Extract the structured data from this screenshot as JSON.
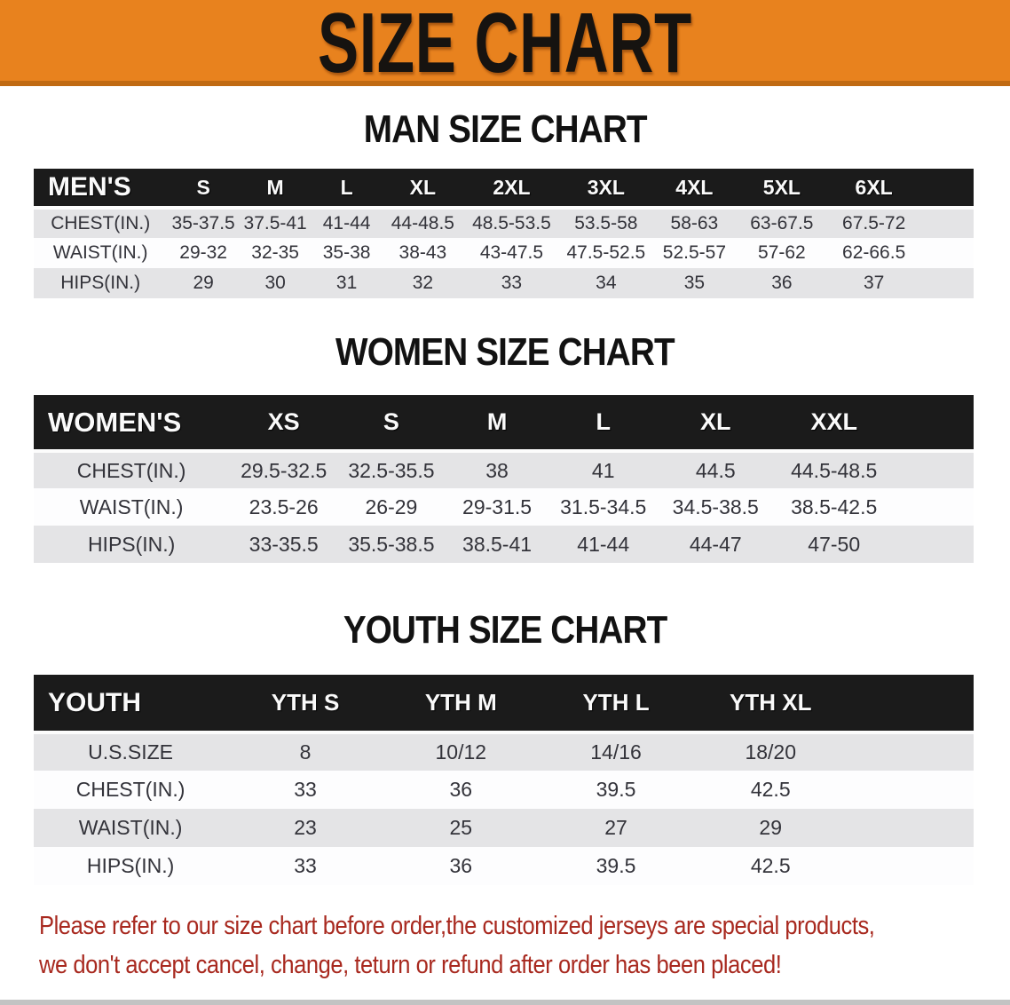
{
  "banner": {
    "title": "SIZE CHART"
  },
  "colors": {
    "banner_bg": "#E8821E",
    "banner_edge": "#C06A12",
    "table_header_bg": "#1B1B1B",
    "row_gray": "#E4E4E6",
    "row_white": "#FDFDFE",
    "footer_red": "#A8291F"
  },
  "sections": [
    {
      "heading": "MAN SIZE CHART",
      "table": {
        "label": "MEN'S",
        "columns": [
          "S",
          "M",
          "L",
          "XL",
          "2XL",
          "3XL",
          "4XL",
          "5XL",
          "6XL"
        ],
        "rows": [
          {
            "label": "CHEST(IN.)",
            "values": [
              "35-37.5",
              "37.5-41",
              "41-44",
              "44-48.5",
              "48.5-53.5",
              "53.5-58",
              "58-63",
              "63-67.5",
              "67.5-72"
            ]
          },
          {
            "label": "WAIST(IN.)",
            "values": [
              "29-32",
              "32-35",
              "35-38",
              "38-43",
              "43-47.5",
              "47.5-52.5",
              "52.5-57",
              "57-62",
              "62-66.5"
            ]
          },
          {
            "label": "HIPS(IN.)",
            "values": [
              "29",
              "30",
              "31",
              "32",
              "33",
              "34",
              "35",
              "36",
              "37"
            ]
          }
        ]
      }
    },
    {
      "heading": "WOMEN SIZE CHART",
      "table": {
        "label": "WOMEN'S",
        "columns": [
          "XS",
          "S",
          "M",
          "L",
          "XL",
          "XXL"
        ],
        "rows": [
          {
            "label": "CHEST(IN.)",
            "values": [
              "29.5-32.5",
              "32.5-35.5",
              "38",
              "41",
              "44.5",
              "44.5-48.5"
            ]
          },
          {
            "label": "WAIST(IN.)",
            "values": [
              "23.5-26",
              "26-29",
              "29-31.5",
              "31.5-34.5",
              "34.5-38.5",
              "38.5-42.5"
            ]
          },
          {
            "label": "HIPS(IN.)",
            "values": [
              "33-35.5",
              "35.5-38.5",
              "38.5-41",
              "41-44",
              "44-47",
              "47-50"
            ]
          }
        ]
      }
    },
    {
      "heading": "YOUTH SIZE CHART",
      "table": {
        "label": "YOUTH",
        "columns": [
          "YTH S",
          "YTH M",
          "YTH L",
          "YTH XL"
        ],
        "rows": [
          {
            "label": "U.S.SIZE",
            "values": [
              "8",
              "10/12",
              "14/16",
              "18/20"
            ]
          },
          {
            "label": "CHEST(IN.)",
            "values": [
              "33",
              "36",
              "39.5",
              "42.5"
            ]
          },
          {
            "label": "WAIST(IN.)",
            "values": [
              "23",
              "25",
              "27",
              "29"
            ]
          },
          {
            "label": "HIPS(IN.)",
            "values": [
              "33",
              "36",
              "39.5",
              "42.5"
            ]
          }
        ]
      }
    }
  ],
  "footer": {
    "line1": "Please refer to our size chart before order,the customized jerseys are special products,",
    "line2": "we don't accept cancel, change, teturn or refund after order has been placed!"
  }
}
